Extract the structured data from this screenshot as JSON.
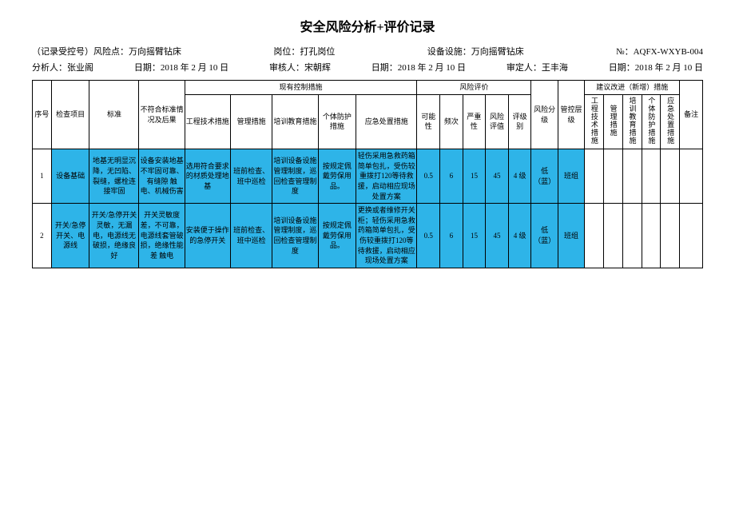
{
  "title": "安全风险分析+评价记录",
  "meta1": {
    "record_label": "（记录受控号）风险点：",
    "record_value": "万向摇臂钻床",
    "post_label": "岗位：",
    "post_value": "打孔岗位",
    "equip_label": "设备设施：",
    "equip_value": "万向摇臂钻床",
    "no_label": "№：",
    "no_value": "AQFX-WXYB-004"
  },
  "meta2": {
    "analyst_label": "分析人：",
    "analyst_value": "张业阁",
    "date1_label": "日期：",
    "date1_value": "2018 年 2 月 10 日",
    "reviewer_label": "审核人：",
    "reviewer_value": "宋朝辉",
    "date2_label": "日期：",
    "date2_value": "2018 年 2 月 10 日",
    "approver_label": "审定人：",
    "approver_value": "王丰海",
    "date3_label": "日期：",
    "date3_value": "2018 年 2 月 10 日"
  },
  "headers": {
    "seq": "序号",
    "item": "检查项目",
    "standard": "标准",
    "noncon": "不符合标准情况及后果",
    "controls": "现有控制措施",
    "eng": "工程技术措施",
    "mgmt": "管理措施",
    "train": "培训教育措施",
    "ppe": "个体防护措施",
    "emerg": "应急处置措施",
    "eval": "风险评价",
    "poss": "可能性",
    "freq": "频次",
    "sev": "严重性",
    "rval": "风险评值",
    "rlvl": "评级别",
    "rclass": "风险分级",
    "ctrl_lvl": "管控层级",
    "suggest": "建议改进（新增）措施",
    "s_eng": "工程技术措施",
    "s_mgmt": "管理措施",
    "s_train": "培训教育措施",
    "s_ppe": "个体防护措施",
    "s_emerg": "应急处置措施",
    "remark": "备注"
  },
  "rows": [
    {
      "seq": "1",
      "item": "设备基础",
      "standard": "地基无明显沉降，无凹陷、裂缝，螺栓连接牢固",
      "noncon": "设备安装地基不牢固可靠、有缝隙\n触电、机械伤害",
      "eng": "选用符合要求的材质处理地基",
      "mgmt": "班前检查、班中巡检",
      "train": "培训设备设施管理制度，巡回检查管理制度",
      "ppe": "按规定佩戴劳保用品。",
      "emerg": "轻伤采用急救药箱简单包扎，受伤较重拨打120等待救援，启动相应现场处置方案",
      "poss": "0.5",
      "freq": "6",
      "sev": "15",
      "rval": "45",
      "rlvl": "4 级",
      "rclass": "低（蓝）",
      "ctrl_lvl": "班组",
      "s_eng": "",
      "s_mgmt": "",
      "s_train": "",
      "s_ppe": "",
      "s_emerg": "",
      "remark": ""
    },
    {
      "seq": "2",
      "item": "开关/急停开关、电源线",
      "standard": "开关/急停开关灵敏，无漏电，电源线无破损，绝缘良好",
      "noncon": "开关灵敏度差，不可靠，电源线套管破损，绝缘性能差\n触电",
      "eng": "安装便于操作的急停开关",
      "mgmt": "班前检查、班中巡检",
      "train": "培训设备设施管理制度，巡回检查管理制度",
      "ppe": "按规定佩戴劳保用品。",
      "emerg": "更换或者维修开关柜；轻伤采用急救药箱简单包扎，受伤较重拨打120等待救援，启动相应现场处置方案",
      "poss": "0.5",
      "freq": "6",
      "sev": "15",
      "rval": "45",
      "rlvl": "4 级",
      "rclass": "低（蓝）",
      "ctrl_lvl": "班组",
      "s_eng": "",
      "s_mgmt": "",
      "s_train": "",
      "s_ppe": "",
      "s_emerg": "",
      "remark": ""
    }
  ],
  "colors": {
    "data_bg": "#2eb4e8"
  }
}
